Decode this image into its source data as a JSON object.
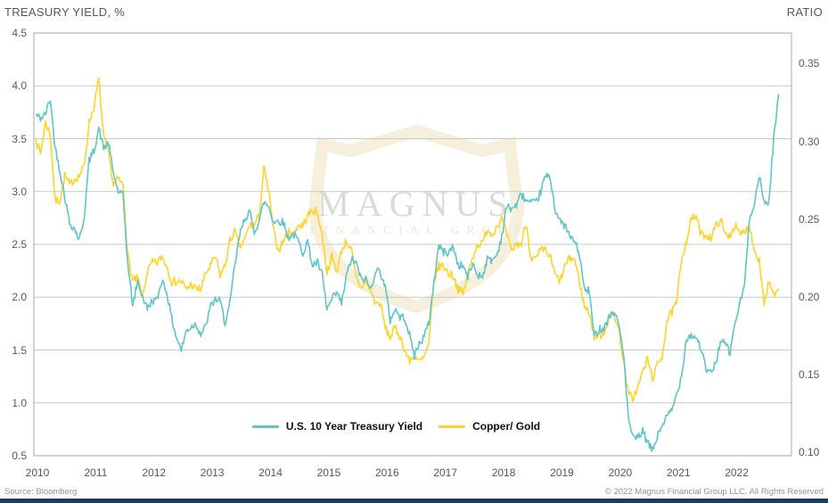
{
  "header": {
    "left_axis_title": "TREASURY YIELD, %",
    "right_axis_title": "RATIO"
  },
  "watermark": {
    "line1": "MAGNUS",
    "line2": "FINANCIAL GROUP"
  },
  "footer": {
    "source": "Source: Bloomberg",
    "copyright": "© 2022 Magnus Financial Group LLC. All Rights Reserved"
  },
  "colors": {
    "treasury_line": "#5EC5C8",
    "copper_gold_line": "#FFD42A",
    "gridline": "#C9C9C9",
    "plot_border": "#A8A8A8",
    "axis_text": "#595959",
    "footer_text": "#939393",
    "bottom_bar": "#1F3A60",
    "watermark_shield": "#F6EFDC",
    "watermark_text": "#DCDAD4",
    "watermark_subtext": "#EAE5D6"
  },
  "chart_data": {
    "type": "line",
    "title": "",
    "frequency": "monthly",
    "x_start": "2010-01",
    "x_end": "2022-10",
    "x_tick_labels": [
      "2010",
      "2011",
      "2012",
      "2013",
      "2014",
      "2015",
      "2016",
      "2017",
      "2018",
      "2019",
      "2020",
      "2021",
      "2022"
    ],
    "left_axis": {
      "title": "TREASURY YIELD, %",
      "min": 0.5,
      "max": 4.5,
      "ticks": [
        4.5,
        4.0,
        3.5,
        3.0,
        2.5,
        2.0,
        1.5,
        1.0,
        0.5
      ]
    },
    "right_axis": {
      "title": "RATIO",
      "min": 0.1,
      "max": 0.35,
      "ticks": [
        0.35,
        0.3,
        0.25,
        0.2,
        0.15,
        0.1
      ]
    },
    "grid": "horizontal",
    "legend_position": "bottom-center-inside",
    "series": [
      {
        "name": "Copper/ Gold",
        "axis": "right",
        "color": "#FFD42A",
        "values": [
          0.302,
          0.292,
          0.312,
          0.305,
          0.262,
          0.262,
          0.278,
          0.272,
          0.276,
          0.278,
          0.284,
          0.312,
          0.322,
          0.34,
          0.302,
          0.292,
          0.272,
          0.276,
          0.272,
          0.226,
          0.21,
          0.212,
          0.2,
          0.216,
          0.222,
          0.222,
          0.226,
          0.22,
          0.21,
          0.21,
          0.21,
          0.205,
          0.208,
          0.205,
          0.205,
          0.215,
          0.22,
          0.226,
          0.214,
          0.22,
          0.236,
          0.242,
          0.232,
          0.236,
          0.246,
          0.246,
          0.252,
          0.282,
          0.268,
          0.242,
          0.23,
          0.236,
          0.242,
          0.24,
          0.246,
          0.246,
          0.252,
          0.256,
          0.254,
          0.24,
          0.216,
          0.226,
          0.216,
          0.23,
          0.236,
          0.23,
          0.212,
          0.206,
          0.21,
          0.204,
          0.196,
          0.196,
          0.18,
          0.174,
          0.18,
          0.175,
          0.166,
          0.158,
          0.163,
          0.158,
          0.161,
          0.17,
          0.21,
          0.22,
          0.22,
          0.215,
          0.214,
          0.205,
          0.202,
          0.215,
          0.226,
          0.234,
          0.234,
          0.244,
          0.24,
          0.246,
          0.25,
          0.24,
          0.229,
          0.234,
          0.234,
          0.248,
          0.225,
          0.224,
          0.23,
          0.23,
          0.225,
          0.214,
          0.21,
          0.22,
          0.225,
          0.224,
          0.21,
          0.194,
          0.19,
          0.175,
          0.175,
          0.177,
          0.186,
          0.19,
          0.18,
          0.16,
          0.138,
          0.135,
          0.142,
          0.152,
          0.16,
          0.148,
          0.156,
          0.162,
          0.185,
          0.19,
          0.196,
          0.225,
          0.236,
          0.25,
          0.252,
          0.24,
          0.24,
          0.238,
          0.245,
          0.25,
          0.24,
          0.24,
          0.246,
          0.24,
          0.242,
          0.246,
          0.23,
          0.224,
          0.196,
          0.21,
          0.2,
          0.205
        ]
      },
      {
        "name": "U.S. 10 Year Treasury Yield",
        "axis": "left",
        "color": "#5EC5C8",
        "values": [
          3.73,
          3.69,
          3.73,
          3.88,
          3.42,
          3.2,
          2.95,
          2.7,
          2.65,
          2.54,
          2.76,
          3.29,
          3.39,
          3.6,
          3.41,
          3.46,
          3.17,
          3.0,
          2.96,
          2.3,
          1.92,
          2.15,
          2.01,
          1.89,
          1.97,
          1.97,
          2.17,
          2.05,
          1.8,
          1.62,
          1.5,
          1.68,
          1.72,
          1.75,
          1.65,
          1.72,
          1.91,
          1.98,
          1.96,
          1.76,
          1.93,
          2.3,
          2.58,
          2.74,
          2.81,
          2.62,
          2.72,
          2.9,
          2.86,
          2.71,
          2.72,
          2.71,
          2.56,
          2.6,
          2.54,
          2.42,
          2.53,
          2.3,
          2.33,
          2.21,
          1.88,
          1.98,
          2.04,
          1.94,
          2.2,
          2.36,
          2.32,
          2.17,
          2.17,
          2.07,
          2.26,
          2.24,
          2.09,
          1.78,
          1.89,
          1.81,
          1.81,
          1.64,
          1.45,
          1.56,
          1.63,
          1.76,
          2.14,
          2.49,
          2.43,
          2.42,
          2.48,
          2.3,
          2.3,
          2.19,
          2.32,
          2.21,
          2.2,
          2.36,
          2.35,
          2.4,
          2.58,
          2.86,
          2.84,
          2.87,
          2.98,
          2.91,
          2.89,
          2.89,
          3.0,
          3.15,
          3.12,
          2.83,
          2.71,
          2.68,
          2.57,
          2.53,
          2.4,
          2.07,
          2.06,
          1.63,
          1.7,
          1.71,
          1.81,
          1.86,
          1.76,
          1.5,
          0.87,
          0.66,
          0.67,
          0.73,
          0.62,
          0.55,
          0.68,
          0.79,
          0.87,
          0.93,
          1.08,
          1.26,
          1.61,
          1.64,
          1.62,
          1.52,
          1.32,
          1.28,
          1.37,
          1.58,
          1.56,
          1.47,
          1.76,
          1.93,
          2.13,
          2.75,
          2.9,
          3.14,
          2.9,
          2.9,
          3.52,
          3.92
        ]
      }
    ],
    "legend": [
      {
        "label": "U.S. 10 Year Treasury Yield",
        "color": "#5EC5C8"
      },
      {
        "label": "Copper/ Gold",
        "color": "#FFD42A"
      }
    ]
  }
}
